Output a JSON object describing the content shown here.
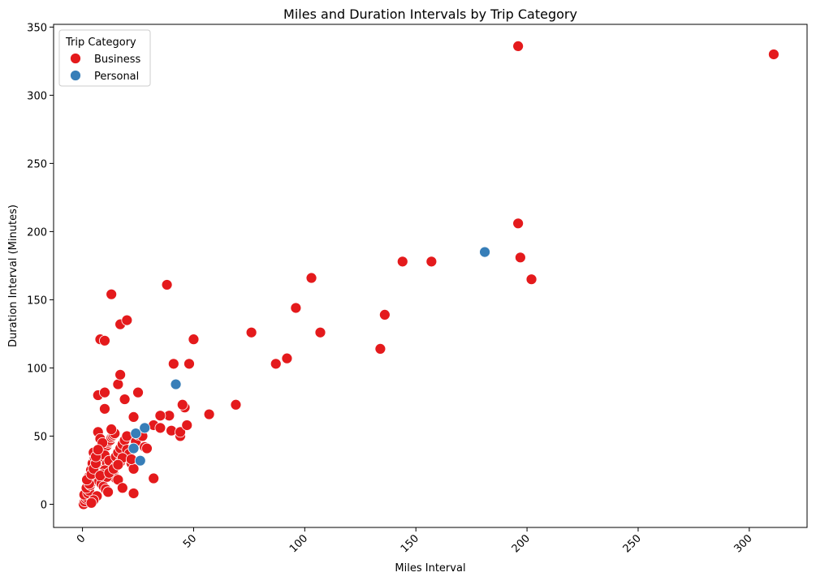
{
  "chart_data": {
    "type": "scatter",
    "title": "Miles and Duration Intervals by Trip Category",
    "xlabel": "Miles Interval",
    "ylabel": "Duration Interval (Minutes)",
    "xlim": [
      -13,
      326
    ],
    "ylim": [
      -17,
      352
    ],
    "x_ticks": [
      0,
      50,
      100,
      150,
      200,
      250,
      300
    ],
    "y_ticks": [
      0,
      50,
      100,
      150,
      200,
      250,
      300,
      350
    ],
    "x_tick_rotation": 45,
    "grid": false,
    "legend": {
      "title": "Trip Category",
      "placement": "top-left"
    },
    "series": [
      {
        "name": "Business",
        "color": "#e41a1c",
        "points": [
          [
            0.5,
            0
          ],
          [
            1,
            2
          ],
          [
            1.5,
            4
          ],
          [
            2,
            5
          ],
          [
            0.8,
            7
          ],
          [
            2.5,
            8
          ],
          [
            3,
            10
          ],
          [
            1.8,
            12
          ],
          [
            3.5,
            14
          ],
          [
            4,
            16
          ],
          [
            4.5,
            18
          ],
          [
            2.8,
            20
          ],
          [
            5,
            21
          ],
          [
            5.5,
            23
          ],
          [
            6,
            25
          ],
          [
            3.8,
            25
          ],
          [
            6.5,
            27
          ],
          [
            7,
            29
          ],
          [
            4.5,
            30
          ],
          [
            7.5,
            31
          ],
          [
            8,
            33
          ],
          [
            5.5,
            34
          ],
          [
            8.5,
            35
          ],
          [
            9,
            37
          ],
          [
            6,
            38
          ],
          [
            9.5,
            39
          ],
          [
            10,
            40
          ],
          [
            10.5,
            42
          ],
          [
            11,
            43
          ],
          [
            11.5,
            45
          ],
          [
            12,
            46
          ],
          [
            12.5,
            47
          ],
          [
            13,
            49
          ],
          [
            13.5,
            50
          ],
          [
            14,
            51
          ],
          [
            14.5,
            52
          ],
          [
            7,
            53
          ],
          [
            8,
            48
          ],
          [
            9,
            45
          ],
          [
            10,
            36
          ],
          [
            11,
            30
          ],
          [
            12,
            27
          ],
          [
            13,
            24
          ],
          [
            14,
            22
          ],
          [
            15,
            19
          ],
          [
            16,
            18
          ],
          [
            7.5,
            17
          ],
          [
            8.5,
            15
          ],
          [
            9.5,
            13
          ],
          [
            10.5,
            11
          ],
          [
            11.5,
            9
          ],
          [
            6.5,
            6
          ],
          [
            5,
            3
          ],
          [
            4,
            1
          ],
          [
            12,
            32
          ],
          [
            15,
            35
          ],
          [
            16,
            38
          ],
          [
            17,
            41
          ],
          [
            18,
            44
          ],
          [
            19,
            47
          ],
          [
            20,
            40
          ],
          [
            21,
            37
          ],
          [
            22,
            30
          ],
          [
            15,
            28
          ],
          [
            17,
            31
          ],
          [
            18,
            34
          ],
          [
            20,
            50
          ],
          [
            13,
            55
          ],
          [
            3,
            15
          ],
          [
            2,
            18
          ],
          [
            4,
            22
          ],
          [
            5,
            26
          ],
          [
            6,
            30
          ],
          [
            5,
            38
          ],
          [
            6,
            35
          ],
          [
            7,
            40
          ],
          [
            10,
            25
          ],
          [
            9,
            22
          ],
          [
            11,
            20
          ],
          [
            8,
            21
          ],
          [
            12,
            23
          ],
          [
            14,
            26
          ],
          [
            16,
            29
          ],
          [
            23,
            8
          ],
          [
            18,
            12
          ],
          [
            32,
            19
          ],
          [
            23,
            26
          ],
          [
            22,
            33
          ],
          [
            23,
            41
          ],
          [
            24,
            46
          ],
          [
            25,
            51
          ],
          [
            27,
            50
          ],
          [
            28,
            42
          ],
          [
            29,
            41
          ],
          [
            32,
            58
          ],
          [
            35,
            56
          ],
          [
            40,
            54
          ],
          [
            44,
            50
          ],
          [
            44,
            53
          ],
          [
            47,
            58
          ],
          [
            46,
            71
          ],
          [
            45,
            73
          ],
          [
            39,
            65
          ],
          [
            35,
            65
          ],
          [
            23,
            64
          ],
          [
            25,
            82
          ],
          [
            19,
            77
          ],
          [
            16,
            88
          ],
          [
            17,
            95
          ],
          [
            10,
            70
          ],
          [
            7,
            80
          ],
          [
            10,
            82
          ],
          [
            8,
            121
          ],
          [
            10,
            120
          ],
          [
            17,
            132
          ],
          [
            20,
            135
          ],
          [
            13,
            154
          ],
          [
            38,
            161
          ],
          [
            41,
            103
          ],
          [
            48,
            103
          ],
          [
            50,
            121
          ],
          [
            57,
            66
          ],
          [
            69,
            73
          ],
          [
            76,
            126
          ],
          [
            87,
            103
          ],
          [
            92,
            107
          ],
          [
            96,
            144
          ],
          [
            103,
            166
          ],
          [
            107,
            126
          ],
          [
            134,
            114
          ],
          [
            136,
            139
          ],
          [
            144,
            178
          ],
          [
            157,
            178
          ],
          [
            196,
            206
          ],
          [
            197,
            181
          ],
          [
            202,
            165
          ],
          [
            196,
            336
          ],
          [
            311,
            330
          ]
        ]
      },
      {
        "name": "Personal",
        "color": "#377eb8",
        "points": [
          [
            23,
            41
          ],
          [
            24,
            52
          ],
          [
            28,
            56
          ],
          [
            26,
            32
          ],
          [
            42,
            88
          ],
          [
            181,
            185
          ]
        ]
      }
    ]
  }
}
